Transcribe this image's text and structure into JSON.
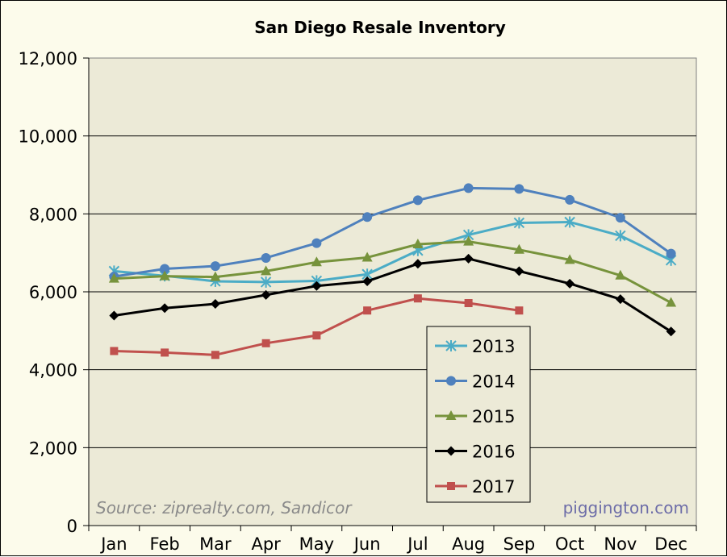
{
  "chart_data": {
    "type": "line",
    "title": "San Diego Resale Inventory",
    "categories": [
      "Jan",
      "Feb",
      "Mar",
      "Apr",
      "May",
      "Jun",
      "Jul",
      "Aug",
      "Sep",
      "Oct",
      "Nov",
      "Dec"
    ],
    "ylim": [
      0,
      12000
    ],
    "yticks": [
      "0",
      "2,000",
      "4,000",
      "6,000",
      "8,000",
      "10,000",
      "12,000"
    ],
    "grid": true,
    "legend_position": "center-bottom",
    "series": [
      {
        "name": "2013",
        "color": "#4bacc6",
        "marker": "star",
        "values": [
          6530,
          6410,
          6270,
          6250,
          6280,
          6450,
          7060,
          7460,
          7770,
          7790,
          7440,
          6810
        ]
      },
      {
        "name": "2014",
        "color": "#4f81bd",
        "marker": "circle",
        "values": [
          6390,
          6590,
          6660,
          6870,
          7250,
          7920,
          8350,
          8660,
          8640,
          8360,
          7900,
          6980
        ]
      },
      {
        "name": "2015",
        "color": "#77933c",
        "marker": "triangle",
        "values": [
          6340,
          6400,
          6380,
          6530,
          6760,
          6880,
          7220,
          7290,
          7080,
          6820,
          6420,
          5720
        ]
      },
      {
        "name": "2016",
        "color": "#000000",
        "marker": "diamond",
        "values": [
          5390,
          5580,
          5690,
          5920,
          6150,
          6270,
          6720,
          6850,
          6530,
          6210,
          5810,
          4980
        ]
      },
      {
        "name": "2017",
        "color": "#c0504d",
        "marker": "square",
        "values": [
          4480,
          4440,
          4380,
          4680,
          4880,
          5520,
          5830,
          5710,
          5520,
          null,
          null,
          null
        ]
      }
    ],
    "annotations": {
      "source": "Source: ziprealty.com, Sandicor",
      "watermark": "piggington.com"
    }
  }
}
